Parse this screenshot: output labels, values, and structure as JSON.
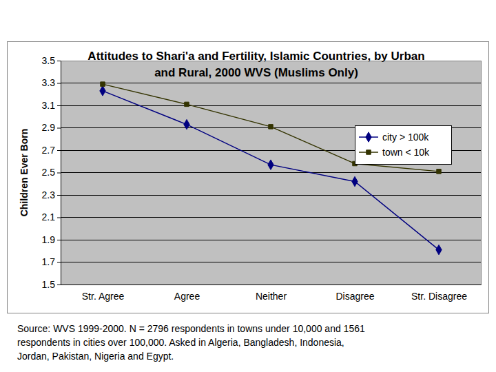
{
  "chart_data": {
    "type": "line",
    "title": "Attitudes to Shari'a and Fertility, Islamic Countries, by Urban and Rural, 2000 WVS (Muslims Only)",
    "y_label": "Children Ever Born",
    "categories": [
      "Str. Agree",
      "Agree",
      "Neither",
      "Disagree",
      "Str. Disagree"
    ],
    "series": [
      {
        "name": "city > 100k",
        "color": "#000080",
        "marker": "diamond",
        "values": [
          3.23,
          2.93,
          2.57,
          2.42,
          1.81
        ]
      },
      {
        "name": "town < 10k",
        "color": "#333300",
        "marker": "square",
        "values": [
          3.29,
          3.11,
          2.91,
          2.58,
          2.51
        ]
      }
    ],
    "ylim": [
      1.5,
      3.5
    ],
    "yticks": [
      1.5,
      1.7,
      1.9,
      2.1,
      2.3,
      2.5,
      2.7,
      2.9,
      3.1,
      3.3,
      3.5
    ],
    "grid": true,
    "legend": "upper right",
    "note": [
      "Source: WVS 1999-2000. N = 2796 respondents in towns under 10,000 and 1561",
      "respondents in cities over 100,000. Asked in Algeria, Bangladesh, Indonesia,",
      "Jordan, Pakistan, Nigeria and Egypt."
    ]
  }
}
